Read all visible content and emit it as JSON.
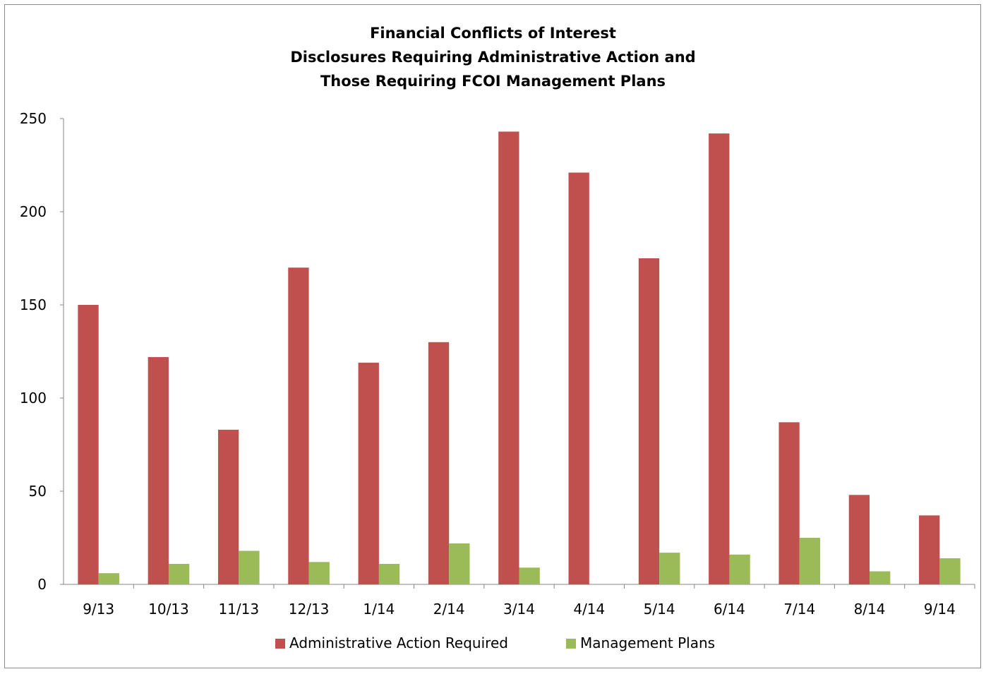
{
  "chart_data": {
    "type": "bar",
    "title_lines": [
      "Financial Conflicts of Interest",
      "Disclosures Requiring Administrative Action and",
      "Those Requiring FCOI Management Plans"
    ],
    "categories": [
      "9/13",
      "10/13",
      "11/13",
      "12/13",
      "1/14",
      "2/14",
      "3/14",
      "4/14",
      "5/14",
      "6/14",
      "7/14",
      "8/14",
      "9/14"
    ],
    "series": [
      {
        "name": "Administrative Action Required",
        "color": "#c0504d",
        "values": [
          150,
          122,
          83,
          170,
          119,
          130,
          243,
          221,
          175,
          242,
          87,
          48,
          37
        ]
      },
      {
        "name": "Management Plans",
        "color": "#9bbb59",
        "values": [
          6,
          11,
          18,
          12,
          11,
          22,
          9,
          0,
          17,
          16,
          25,
          7,
          14
        ]
      }
    ],
    "ylim": [
      0,
      250
    ],
    "yticks": [
      0,
      50,
      100,
      150,
      200,
      250
    ],
    "xlabel": "",
    "ylabel": "",
    "grid": false,
    "legend_position": "bottom"
  }
}
